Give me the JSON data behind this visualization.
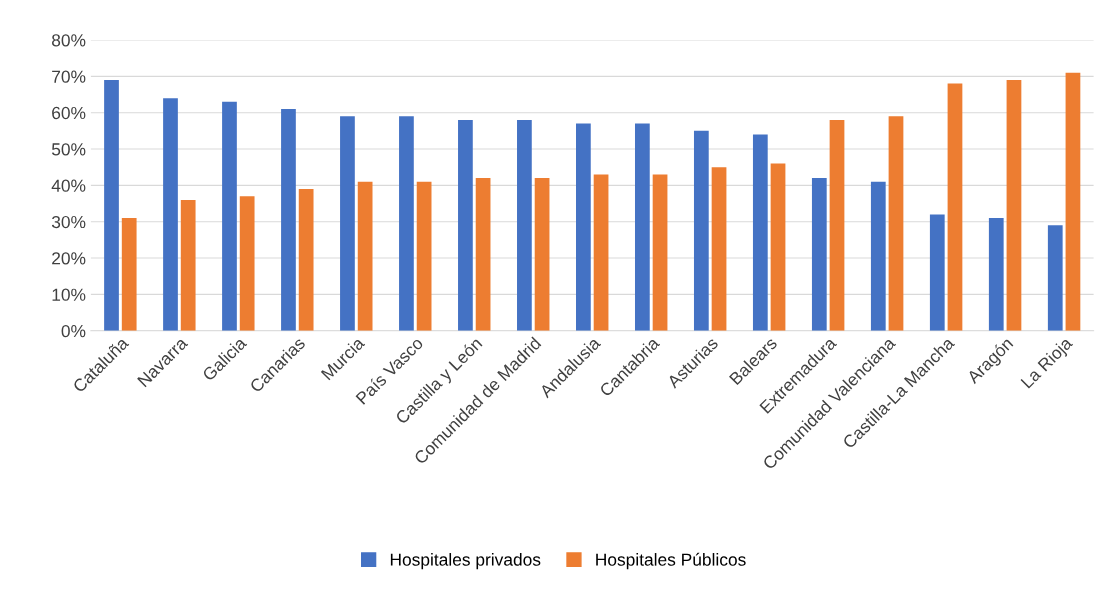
{
  "chart_data": {
    "type": "bar",
    "categories": [
      "Cataluña",
      "Navarra",
      "Galicia",
      "Canarias",
      "Murcia",
      "País Vasco",
      "Castilla y León",
      "Comunidad de Madrid",
      "Andalusia",
      "Cantabria",
      "Asturias",
      "Balears",
      "Extremadura",
      "Comunidad Valenciana",
      "Castilla-La Mancha",
      "Aragón",
      "La Rioja"
    ],
    "series": [
      {
        "name": "Hospitales privados",
        "color": "#4472c4",
        "values": [
          69,
          64,
          63,
          61,
          59,
          59,
          58,
          58,
          57,
          57,
          55,
          54,
          42,
          41,
          32,
          31,
          29
        ]
      },
      {
        "name": "Hospitales Públicos",
        "color": "#ed7d31",
        "values": [
          31,
          36,
          37,
          39,
          41,
          41,
          42,
          42,
          43,
          43,
          45,
          46,
          58,
          59,
          68,
          69,
          71
        ]
      }
    ],
    "ylim": [
      0,
      80
    ],
    "yticks": [
      {
        "value": 0,
        "label": "0%"
      },
      {
        "value": 10,
        "label": "10%"
      },
      {
        "value": 20,
        "label": "20%"
      },
      {
        "value": 30,
        "label": "30%"
      },
      {
        "value": 40,
        "label": "40%"
      },
      {
        "value": 50,
        "label": "50%"
      },
      {
        "value": 60,
        "label": "60%"
      },
      {
        "value": 70,
        "label": "70%"
      },
      {
        "value": 80,
        "label": "80%"
      }
    ],
    "grid": "y",
    "legend": "bottom"
  }
}
